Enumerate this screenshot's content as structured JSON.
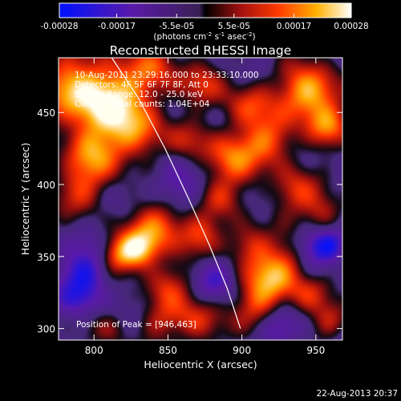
{
  "chart_data": {
    "type": "heatmap",
    "title": "Reconstructed RHESSI Image",
    "xlabel": "Heliocentric X (arcsec)",
    "ylabel": "Heliocentric Y (arcsec)",
    "xlim": [
      776,
      968
    ],
    "ylim": [
      292,
      488
    ],
    "x_ticks": [
      800,
      850,
      900,
      950
    ],
    "y_ticks": [
      300,
      350,
      400,
      450
    ],
    "colorbar": {
      "ticks": [
        "-0.00028",
        "-0.00017",
        "-5.5e-05",
        "5.5e-05",
        "0.00017",
        "0.00028"
      ],
      "tick_values": [
        -0.00028,
        -0.00017,
        -5.5e-05,
        5.5e-05,
        0.00017,
        0.00028
      ],
      "unit_label": "(photons cm",
      "unit_exp1": "-2",
      "unit_mid": " s",
      "unit_exp2": "-1",
      "unit_mid2": " asec",
      "unit_exp3": "-2",
      "unit_close": ")"
    },
    "annotations": [
      "10-Aug-2011 23:29:16.000 to 23:33:10.000",
      "Detectors: 4F 5F 6F 7F 8F, Att 0",
      "Energy Range: 12.0 - 25.0 keV",
      "Clean     Total counts: 1.04E+04"
    ],
    "peak_label": "Position of Peak = [946,463]",
    "peak": [
      946,
      463
    ],
    "limb_curve": [
      [
        812,
        488
      ],
      [
        830,
        460
      ],
      [
        848,
        425
      ],
      [
        864,
        390
      ],
      [
        878,
        358
      ],
      [
        890,
        328
      ],
      [
        899,
        300
      ]
    ],
    "sources": [
      {
        "x": 790,
        "y": 465,
        "amp": 0.95,
        "w": 18
      },
      {
        "x": 815,
        "y": 455,
        "amp": 0.75,
        "w": 16
      },
      {
        "x": 840,
        "y": 480,
        "amp": 0.55,
        "w": 14
      },
      {
        "x": 830,
        "y": 435,
        "amp": 0.6,
        "w": 13
      },
      {
        "x": 800,
        "y": 420,
        "amp": 0.7,
        "w": 14
      },
      {
        "x": 790,
        "y": 395,
        "amp": 0.45,
        "w": 12
      },
      {
        "x": 873,
        "y": 470,
        "amp": 0.45,
        "w": 11
      },
      {
        "x": 865,
        "y": 430,
        "amp": 0.35,
        "w": 10
      },
      {
        "x": 905,
        "y": 455,
        "amp": 0.55,
        "w": 12
      },
      {
        "x": 893,
        "y": 418,
        "amp": 0.7,
        "w": 14
      },
      {
        "x": 920,
        "y": 430,
        "amp": 0.6,
        "w": 12
      },
      {
        "x": 935,
        "y": 395,
        "amp": 0.5,
        "w": 12
      },
      {
        "x": 946,
        "y": 463,
        "amp": 1.0,
        "w": 14
      },
      {
        "x": 958,
        "y": 440,
        "amp": 0.6,
        "w": 10
      },
      {
        "x": 955,
        "y": 380,
        "amp": 0.45,
        "w": 10
      },
      {
        "x": 830,
        "y": 355,
        "amp": 1.0,
        "w": 10
      },
      {
        "x": 815,
        "y": 350,
        "amp": 0.55,
        "w": 9
      },
      {
        "x": 845,
        "y": 372,
        "amp": 0.7,
        "w": 12
      },
      {
        "x": 872,
        "y": 365,
        "amp": 0.55,
        "w": 10
      },
      {
        "x": 850,
        "y": 330,
        "amp": 0.5,
        "w": 11
      },
      {
        "x": 870,
        "y": 305,
        "amp": 0.55,
        "w": 12
      },
      {
        "x": 845,
        "y": 305,
        "amp": 0.35,
        "w": 10
      },
      {
        "x": 905,
        "y": 358,
        "amp": 0.55,
        "w": 11
      },
      {
        "x": 920,
        "y": 335,
        "amp": 0.8,
        "w": 12
      },
      {
        "x": 910,
        "y": 315,
        "amp": 0.5,
        "w": 11
      },
      {
        "x": 935,
        "y": 350,
        "amp": 0.45,
        "w": 10
      },
      {
        "x": 945,
        "y": 325,
        "amp": 0.45,
        "w": 10
      },
      {
        "x": 960,
        "y": 305,
        "amp": 0.4,
        "w": 9
      },
      {
        "x": 885,
        "y": 390,
        "amp": 0.35,
        "w": 10
      },
      {
        "x": 810,
        "y": 300,
        "amp": 0.3,
        "w": 10
      },
      {
        "x": 795,
        "y": 340,
        "amp": -0.6,
        "w": 12
      },
      {
        "x": 790,
        "y": 320,
        "amp": -0.4,
        "w": 10
      },
      {
        "x": 945,
        "y": 355,
        "amp": -0.5,
        "w": 10
      },
      {
        "x": 960,
        "y": 358,
        "amp": -0.6,
        "w": 8
      },
      {
        "x": 880,
        "y": 335,
        "amp": -0.4,
        "w": 10
      },
      {
        "x": 855,
        "y": 400,
        "amp": -0.35,
        "w": 12
      },
      {
        "x": 925,
        "y": 300,
        "amp": -0.35,
        "w": 10
      }
    ]
  },
  "footer_timestamp": "22-Aug-2013 20:37"
}
